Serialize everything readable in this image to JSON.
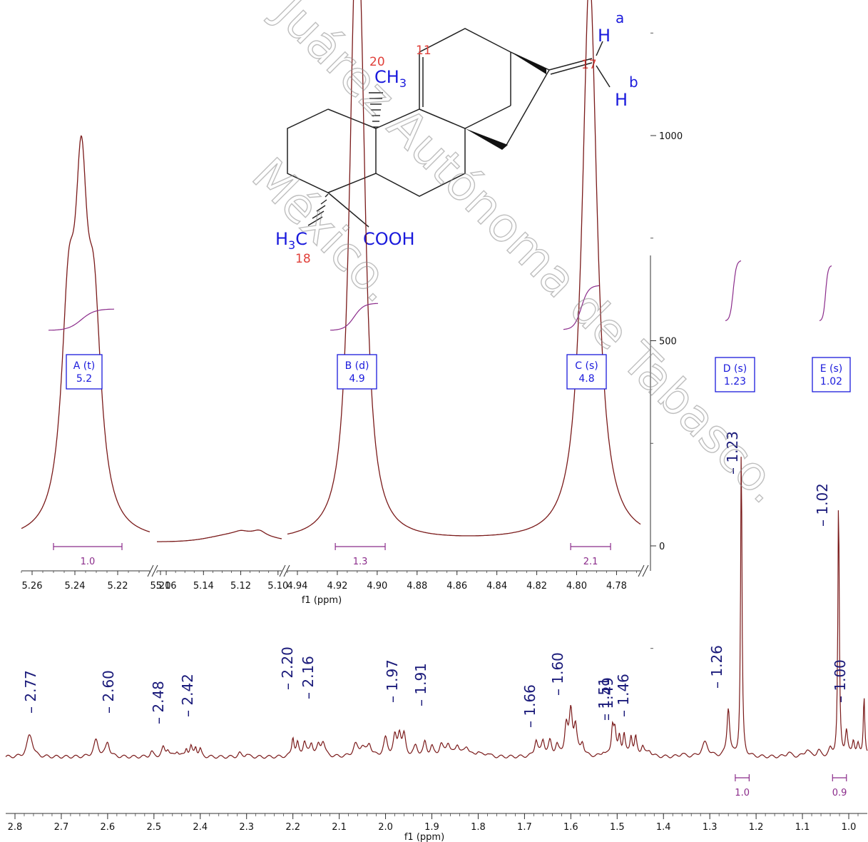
{
  "structure": {
    "labels": {
      "h_a": "H",
      "a": "a",
      "h_b": "H",
      "b": "b",
      "c17": "17",
      "c11": "11",
      "c20": "20",
      "c18": "18",
      "ch3": "CH",
      "ch3_sub": "3",
      "h3c_h": "H",
      "h3c_sub": "3",
      "h3c_c": "C",
      "cooh": "COOH"
    },
    "colors": {
      "atom": "#1a1adc",
      "number": "#e0403a",
      "bond": "#222222"
    }
  },
  "watermark": {
    "text": "Juárez Autónoma de Tabasco.",
    "text2": "México.",
    "color": "#9a9a9a"
  },
  "chart_data": [
    {
      "type": "line",
      "name": "expanded-inset",
      "xlabel": "f1 (ppm)",
      "ylim": [
        -300,
        2800
      ],
      "y_ticks": [
        0,
        500,
        1000,
        1500,
        2000,
        2500
      ],
      "segments": [
        {
          "x_range": [
            5.265,
            5.205
          ],
          "ticks": [
            5.26,
            5.24,
            5.22,
            5.2
          ],
          "peaks": [
            {
              "x": 5.243,
              "h": 480
            },
            {
              "x": 5.237,
              "h": 700
            },
            {
              "x": 5.231,
              "h": 460
            }
          ],
          "integral": {
            "x1": 5.25,
            "x2": 5.218,
            "value": "1.0"
          },
          "box": {
            "label": "A (t)",
            "value": "5.2"
          }
        },
        {
          "x_range": [
            5.165,
            5.098
          ],
          "ticks": [
            5.16,
            5.14,
            5.12,
            5.1
          ],
          "peaks": [
            {
              "x": 5.12,
              "h": 60
            },
            {
              "x": 5.11,
              "h": 80
            }
          ]
        },
        {
          "x_range": [
            4.945,
            4.768
          ],
          "ticks": [
            4.94,
            4.92,
            4.9,
            4.88,
            4.86,
            4.84,
            4.82,
            4.8,
            4.78
          ],
          "peaks": [
            {
              "x": 4.9115,
              "h": 880
            },
            {
              "x": 4.9085,
              "h": 880
            },
            {
              "x": 4.7935,
              "h": 1380
            }
          ],
          "integrals": [
            {
              "x1": 4.921,
              "x2": 4.896,
              "value": "1.3"
            },
            {
              "x1": 4.803,
              "x2": 4.783,
              "value": "2.1"
            }
          ],
          "boxes": [
            {
              "label": "B (d)",
              "value": "4.9"
            },
            {
              "label": "C (s)",
              "value": "4.8"
            }
          ]
        }
      ],
      "extra_boxes": [
        {
          "label": "D (s)",
          "value": "1.23"
        },
        {
          "label": "E (s)",
          "value": "1.02"
        }
      ],
      "color": "#7a1a1a",
      "integral_color": "#8b2c8b",
      "label_color": "#1a1adc"
    },
    {
      "type": "line",
      "name": "full-spectrum",
      "xlabel": "f1 (ppm)",
      "x_range": [
        2.82,
        0.96
      ],
      "x_ticks": [
        2.8,
        2.7,
        2.6,
        2.5,
        2.4,
        2.3,
        2.2,
        2.1,
        2.0,
        1.9,
        1.8,
        1.7,
        1.6,
        1.5,
        1.4,
        1.3,
        1.2,
        1.1,
        1.0
      ],
      "peak_labels": [
        "2.77",
        "2.60",
        "2.48",
        "2.42",
        "2.20",
        "2.16",
        "1.97",
        "1.91",
        "1.66",
        "1.60",
        "1.51",
        "1.49",
        "1.46",
        "1.26",
        "1.23",
        "1.02",
        "1.00"
      ],
      "integrals": [
        {
          "x1": 1.245,
          "x2": 1.215,
          "value": "1.0"
        },
        {
          "x1": 1.035,
          "x2": 1.005,
          "value": "0.9"
        }
      ],
      "color": "#7a1a1a",
      "label_color": "#1a1a7a",
      "integral_color": "#8b2c8b"
    }
  ]
}
